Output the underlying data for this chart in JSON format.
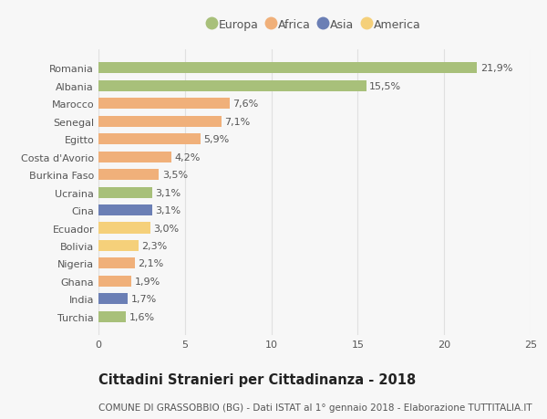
{
  "categories": [
    "Romania",
    "Albania",
    "Marocco",
    "Senegal",
    "Egitto",
    "Costa d'Avorio",
    "Burkina Faso",
    "Ucraina",
    "Cina",
    "Ecuador",
    "Bolivia",
    "Nigeria",
    "Ghana",
    "India",
    "Turchia"
  ],
  "values": [
    21.9,
    15.5,
    7.6,
    7.1,
    5.9,
    4.2,
    3.5,
    3.1,
    3.1,
    3.0,
    2.3,
    2.1,
    1.9,
    1.7,
    1.6
  ],
  "labels": [
    "21,9%",
    "15,5%",
    "7,6%",
    "7,1%",
    "5,9%",
    "4,2%",
    "3,5%",
    "3,1%",
    "3,1%",
    "3,0%",
    "2,3%",
    "2,1%",
    "1,9%",
    "1,7%",
    "1,6%"
  ],
  "colors": [
    "#a8c07a",
    "#a8c07a",
    "#f0b07a",
    "#f0b07a",
    "#f0b07a",
    "#f0b07a",
    "#f0b07a",
    "#a8c07a",
    "#6b7fb5",
    "#f5d07a",
    "#f5d07a",
    "#f0b07a",
    "#f0b07a",
    "#6b7fb5",
    "#a8c07a"
  ],
  "legend_labels": [
    "Europa",
    "Africa",
    "Asia",
    "America"
  ],
  "legend_colors": [
    "#a8c07a",
    "#f0b07a",
    "#6b7fb5",
    "#f5d07a"
  ],
  "xlim": [
    0,
    25
  ],
  "xticks": [
    0,
    5,
    10,
    15,
    20,
    25
  ],
  "title": "Cittadini Stranieri per Cittadinanza - 2018",
  "subtitle": "COMUNE DI GRASSOBBIO (BG) - Dati ISTAT al 1° gennaio 2018 - Elaborazione TUTTITALIA.IT",
  "background_color": "#f7f7f7",
  "grid_color": "#e0e0e0",
  "bar_height": 0.62,
  "title_fontsize": 10.5,
  "subtitle_fontsize": 7.5,
  "tick_fontsize": 8,
  "value_fontsize": 8,
  "legend_fontsize": 9
}
